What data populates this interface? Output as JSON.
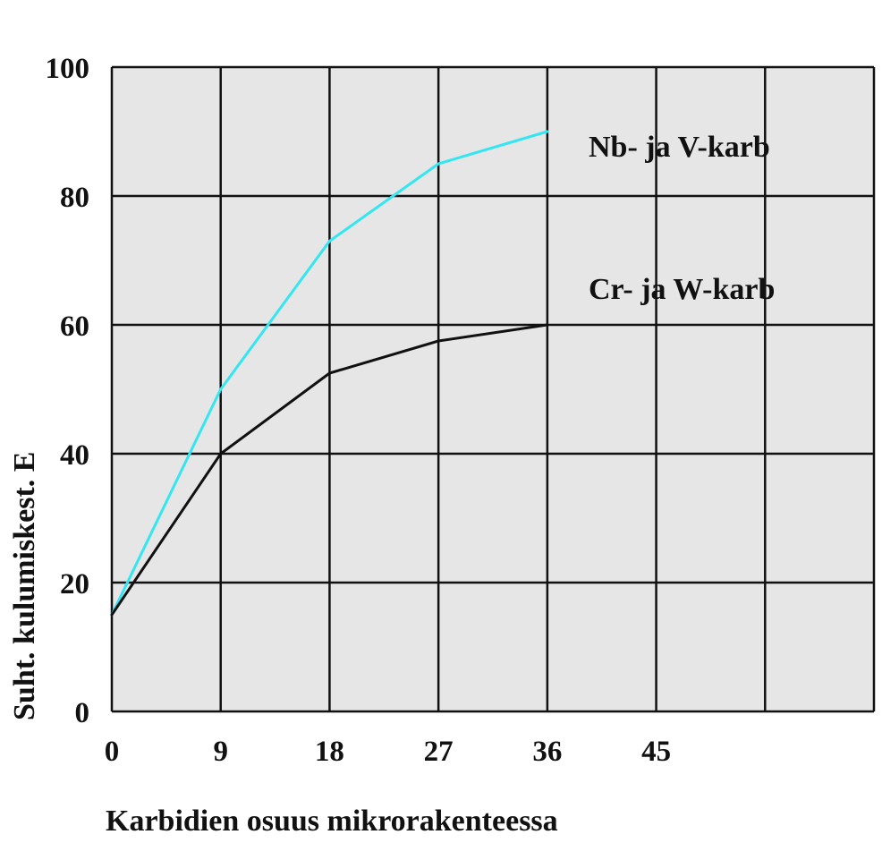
{
  "chart_data": {
    "type": "line",
    "title": "",
    "xlabel": "Karbidien osuus mikrorakenteessa",
    "ylabel": "Suht. kulumiskest. E",
    "xlim": [
      0,
      63
    ],
    "ylim": [
      0,
      100
    ],
    "x_ticks": [
      0,
      9,
      18,
      27,
      36,
      45
    ],
    "x_gridlines": [
      0,
      9,
      18,
      27,
      36,
      45,
      54,
      63
    ],
    "y_ticks": [
      0,
      20,
      40,
      60,
      80,
      100
    ],
    "grid": true,
    "plot_background": "#e6e6e6",
    "grid_color": "#111111",
    "series": [
      {
        "name": "Nb- ja V-karb",
        "color": "#33e6f2",
        "x": [
          0,
          9,
          18,
          27,
          36
        ],
        "y": [
          15,
          50,
          73,
          85,
          90
        ]
      },
      {
        "name": "Cr- ja W-karb",
        "color": "#111111",
        "x": [
          0,
          9,
          18,
          27,
          36
        ],
        "y": [
          15,
          40,
          52.5,
          57.5,
          60
        ]
      }
    ]
  }
}
